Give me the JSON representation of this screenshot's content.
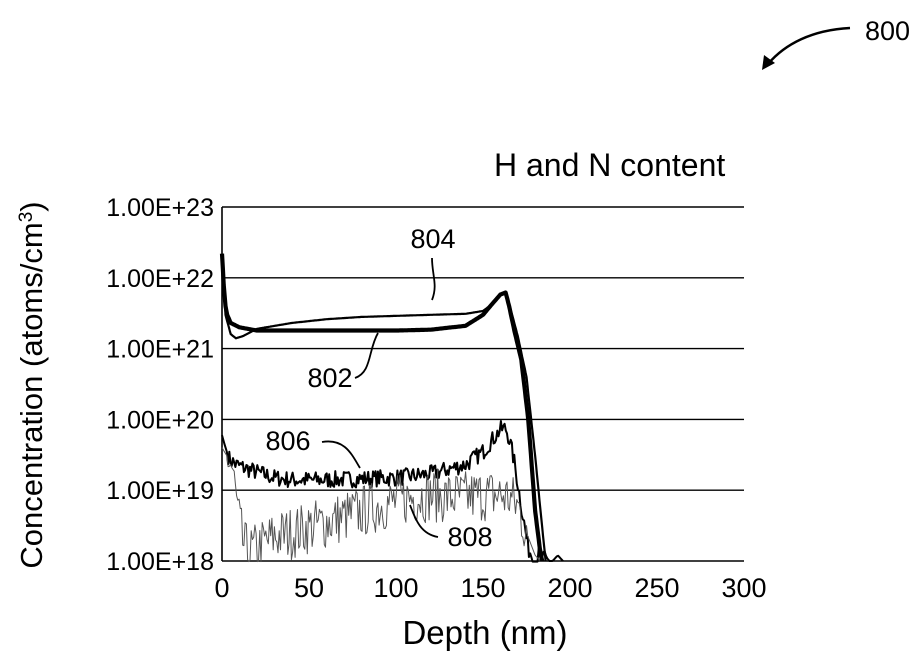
{
  "figure_ref": "800",
  "chart_data": {
    "type": "line",
    "title": "H and N content",
    "xlabel": "Depth (nm)",
    "ylabel_text": "Concentration (atoms/cm",
    "ylabel_sup": "3",
    "ylabel_close": ")",
    "xlim": [
      0,
      300
    ],
    "ylim": [
      1e+18,
      1e+23
    ],
    "y_scale": "log",
    "grid_y": true,
    "grid_x": false,
    "x_ticks": [
      0,
      50,
      100,
      150,
      200,
      250,
      300
    ],
    "x_tick_labels": [
      "0",
      "50",
      "100",
      "150",
      "200",
      "250",
      "300"
    ],
    "y_ticks": [
      1e+23,
      1e+22,
      1e+21,
      1e+20,
      1e+19,
      1e+18
    ],
    "y_tick_labels": [
      "1.00E+23",
      "1.00E+22",
      "1.00E+21",
      "1.00E+20",
      "1.00E+19",
      "1.00E+18"
    ],
    "series": [
      {
        "name": "802",
        "color": "#000000",
        "noise": 0,
        "x": [
          0,
          1,
          2,
          3,
          5,
          10,
          20,
          40,
          60,
          80,
          100,
          120,
          140,
          150,
          155,
          160,
          163,
          165,
          168,
          172,
          176,
          180,
          183,
          184
        ],
        "y": [
          2.2e+22,
          8e+21,
          4e+21,
          3e+21,
          2.3e+21,
          2e+21,
          1.8e+21,
          1.8e+21,
          1.8e+21,
          1.8e+21,
          1.8e+21,
          1.85e+21,
          2.1e+21,
          3e+21,
          4.2e+21,
          5.8e+21,
          6.2e+21,
          4e+21,
          1.8e+21,
          7e+20,
          1e+20,
          5e+18,
          1.3e+18,
          1e+18
        ]
      },
      {
        "name": "804",
        "color": "#000000",
        "noise": 0,
        "x": [
          0,
          2,
          5,
          8,
          12,
          20,
          40,
          60,
          80,
          100,
          120,
          140,
          150,
          155,
          160,
          163,
          166,
          170,
          175,
          180,
          184,
          186
        ],
        "y": [
          2e+22,
          3e+21,
          1.6e+21,
          1.4e+21,
          1.5e+21,
          1.9e+21,
          2.3e+21,
          2.6e+21,
          2.8e+21,
          2.9e+21,
          3e+21,
          3.1e+21,
          3.4e+21,
          4.2e+21,
          5.8e+21,
          6e+21,
          3.5e+21,
          1.5e+21,
          4e+20,
          3e+19,
          3e+18,
          1e+18
        ]
      },
      {
        "name": "806",
        "color": "#000000",
        "noise": 0.12,
        "x": [
          0,
          2,
          4,
          8,
          12,
          20,
          30,
          40,
          60,
          80,
          100,
          120,
          140,
          150,
          155,
          160,
          163,
          165,
          168,
          172,
          176,
          180,
          183,
          186,
          190,
          193,
          196
        ],
        "y": [
          6e+19,
          4e+19,
          2.8e+19,
          2.3e+19,
          2.1e+19,
          1.8e+19,
          1.5e+19,
          1.4e+19,
          1.4e+19,
          1.45e+19,
          1.5e+19,
          1.7e+19,
          2.3e+19,
          3.5e+19,
          5e+19,
          7.2e+19,
          7.5e+19,
          5.5e+19,
          2.5e+19,
          6e+18,
          1.5e+18,
          1e+18,
          1.3e+18,
          1e+18,
          1e+18,
          1.2e+18,
          1e+18
        ]
      },
      {
        "name": "808",
        "color": "#555555",
        "noise": 0.38,
        "x": [
          0,
          3,
          6,
          9,
          12,
          15,
          20,
          30,
          40,
          50,
          60,
          70,
          80,
          90,
          100,
          110,
          120,
          130,
          140,
          150,
          160,
          165,
          170,
          175,
          180,
          183
        ],
        "y": [
          4e+19,
          3e+19,
          2e+19,
          5e+18,
          1.8e+18,
          1.3e+18,
          1.5e+18,
          2.2e+18,
          2.5e+18,
          3e+18,
          3.5e+18,
          4.2e+18,
          5e+18,
          6e+18,
          7e+18,
          8e+18,
          8.5e+18,
          8e+18,
          8e+18,
          8.5e+18,
          8.5e+18,
          8e+18,
          6e+18,
          2.5e+18,
          1.2e+18,
          1e+18
        ]
      }
    ],
    "callouts": [
      {
        "series": "804",
        "label": "804"
      },
      {
        "series": "802",
        "label": "802"
      },
      {
        "series": "806",
        "label": "806"
      },
      {
        "series": "808",
        "label": "808"
      }
    ]
  }
}
